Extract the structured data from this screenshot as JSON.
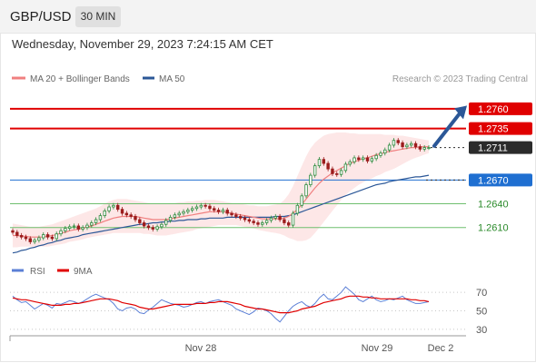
{
  "header": {
    "symbol": "GBP/USD",
    "timeframe": "30 MIN",
    "datetime": "Wednesday, November 29, 2023 7:24:15 AM CET"
  },
  "colors": {
    "ma20": "#f08080",
    "ma50": "#2b5797",
    "resistance": "#e00000",
    "pivot": "#1f6fd1",
    "support": "#2a8a2a",
    "last": "#2b2b2b",
    "candle_up": "#2e8b3e",
    "candle_down": "#9b1c1c",
    "band_fill": "#fde4e4",
    "rsi": "#5b7fd6",
    "rsi_ma": "#e00000"
  },
  "chart_data": [
    {
      "type": "candlestick",
      "legend": [
        {
          "name": "MA 20 + Bollinger Bands",
          "color": "#f08080"
        },
        {
          "name": "MA 50",
          "color": "#2b5797"
        }
      ],
      "credit": "Research © 2023 Trading Central",
      "x_tick_labels": [
        "Nov 28",
        "Nov 29",
        "Dec 2"
      ],
      "ylim": [
        1.2565,
        1.2785
      ],
      "levels": [
        {
          "label": "1.2760",
          "value": 1.276,
          "kind": "resistance"
        },
        {
          "label": "1.2735",
          "value": 1.2735,
          "kind": "resistance"
        },
        {
          "label": "1.2711",
          "value": 1.2711,
          "kind": "last"
        },
        {
          "label": "1.2670",
          "value": 1.267,
          "kind": "pivot"
        },
        {
          "label": "1.2640",
          "value": 1.264,
          "kind": "support"
        },
        {
          "label": "1.2610",
          "value": 1.261,
          "kind": "support"
        }
      ],
      "close": [
        1.2604,
        1.26,
        1.2598,
        1.2596,
        1.2592,
        1.2594,
        1.2597,
        1.2601,
        1.2598,
        1.2596,
        1.2602,
        1.2606,
        1.2609,
        1.2611,
        1.2612,
        1.2608,
        1.261,
        1.2613,
        1.2616,
        1.262,
        1.2625,
        1.2631,
        1.2636,
        1.2638,
        1.2633,
        1.2628,
        1.2626,
        1.2624,
        1.262,
        1.2616,
        1.2612,
        1.261,
        1.2608,
        1.2611,
        1.2614,
        1.2619,
        1.2623,
        1.2626,
        1.2628,
        1.263,
        1.2632,
        1.2634,
        1.2636,
        1.2638,
        1.2637,
        1.2634,
        1.2632,
        1.263,
        1.2632,
        1.2628,
        1.2626,
        1.2624,
        1.2622,
        1.262,
        1.2618,
        1.2616,
        1.2614,
        1.2616,
        1.2619,
        1.2622,
        1.2624,
        1.262,
        1.2616,
        1.2613,
        1.2628,
        1.2638,
        1.265,
        1.2664,
        1.2676,
        1.2688,
        1.2696,
        1.2691,
        1.2684,
        1.2678,
        1.2677,
        1.2682,
        1.269,
        1.2693,
        1.2698,
        1.2696,
        1.2698,
        1.2694,
        1.2697,
        1.2701,
        1.2704,
        1.2708,
        1.2714,
        1.272,
        1.2717,
        1.2712,
        1.2714,
        1.2716,
        1.2712,
        1.2709,
        1.2711,
        1.2711
      ],
      "ma20": [
        1.26,
        1.26,
        1.2599,
        1.2599,
        1.2598,
        1.2598,
        1.2598,
        1.2598,
        1.2599,
        1.26,
        1.2601,
        1.2603,
        1.2604,
        1.2606,
        1.2607,
        1.2608,
        1.2609,
        1.2611,
        1.2612,
        1.2614,
        1.2616,
        1.2618,
        1.262,
        1.2622,
        1.2623,
        1.2624,
        1.2624,
        1.2624,
        1.2624,
        1.2623,
        1.2622,
        1.2621,
        1.262,
        1.262,
        1.262,
        1.262,
        1.2621,
        1.2622,
        1.2623,
        1.2624,
        1.2625,
        1.2626,
        1.2627,
        1.2628,
        1.2629,
        1.263,
        1.263,
        1.263,
        1.263,
        1.2629,
        1.2628,
        1.2627,
        1.2626,
        1.2625,
        1.2624,
        1.2623,
        1.2622,
        1.2621,
        1.2621,
        1.2621,
        1.2621,
        1.2621,
        1.2622,
        1.2624,
        1.2628,
        1.2633,
        1.2639,
        1.2646,
        1.2653,
        1.266,
        1.2666,
        1.2671,
        1.2675,
        1.2679,
        1.2682,
        1.2685,
        1.2688,
        1.2691,
        1.2693,
        1.2695,
        1.2697,
        1.2698,
        1.27,
        1.2702,
        1.2703,
        1.2705,
        1.2706,
        1.2707,
        1.2708,
        1.2709,
        1.271,
        1.2711,
        1.2711,
        1.2712,
        1.2712,
        1.2712
      ],
      "ma50": [
        1.2578,
        1.2579,
        1.2581,
        1.2582,
        1.2584,
        1.2585,
        1.2587,
        1.2588,
        1.259,
        1.2591,
        1.2593,
        1.2594,
        1.2596,
        1.2597,
        1.2598,
        1.2599,
        1.2601,
        1.2602,
        1.2603,
        1.2604,
        1.2605,
        1.2606,
        1.2607,
        1.2608,
        1.2609,
        1.261,
        1.2611,
        1.2612,
        1.2613,
        1.2614,
        1.2614,
        1.2615,
        1.2616,
        1.2616,
        1.2617,
        1.2617,
        1.2618,
        1.2618,
        1.2619,
        1.2619,
        1.262,
        1.262,
        1.262,
        1.2621,
        1.2621,
        1.2622,
        1.2622,
        1.2622,
        1.2622,
        1.2623,
        1.2623,
        1.2623,
        1.2623,
        1.2623,
        1.2623,
        1.2623,
        1.2623,
        1.2623,
        1.2623,
        1.2623,
        1.2624,
        1.2624,
        1.2624,
        1.2625,
        1.2626,
        1.2628,
        1.263,
        1.2632,
        1.2634,
        1.2636,
        1.2638,
        1.264,
        1.2642,
        1.2644,
        1.2646,
        1.2648,
        1.265,
        1.2652,
        1.2654,
        1.2656,
        1.2658,
        1.266,
        1.2662,
        1.2664,
        1.2665,
        1.2666,
        1.2668,
        1.2669,
        1.267,
        1.2671,
        1.2672,
        1.2673,
        1.2674,
        1.2674,
        1.2675,
        1.2676
      ],
      "bb_upper": [
        1.2615,
        1.2614,
        1.2613,
        1.2612,
        1.2611,
        1.2611,
        1.2611,
        1.2612,
        1.2613,
        1.2614,
        1.2616,
        1.2618,
        1.262,
        1.2622,
        1.2624,
        1.2626,
        1.2628,
        1.263,
        1.2632,
        1.2634,
        1.2637,
        1.264,
        1.2643,
        1.2645,
        1.2646,
        1.2646,
        1.2646,
        1.2645,
        1.2644,
        1.2643,
        1.2642,
        1.2641,
        1.264,
        1.264,
        1.264,
        1.264,
        1.2641,
        1.2641,
        1.2642,
        1.2642,
        1.2643,
        1.2643,
        1.2644,
        1.2644,
        1.2645,
        1.2645,
        1.2645,
        1.2644,
        1.2643,
        1.2642,
        1.2641,
        1.264,
        1.264,
        1.2639,
        1.2638,
        1.2638,
        1.2637,
        1.2637,
        1.2637,
        1.2638,
        1.2639,
        1.264,
        1.2645,
        1.2652,
        1.2662,
        1.2675,
        1.2688,
        1.27,
        1.271,
        1.2717,
        1.2722,
        1.2726,
        1.2728,
        1.2729,
        1.273,
        1.273,
        1.273,
        1.2729,
        1.2729,
        1.2728,
        1.2728,
        1.2728,
        1.2728,
        1.2728,
        1.2728,
        1.2727,
        1.2727,
        1.2727,
        1.2726,
        1.2726,
        1.2725,
        1.2724,
        1.2723,
        1.2722,
        1.2721,
        1.272
      ],
      "bb_lower": [
        1.2585,
        1.2585,
        1.2586,
        1.2586,
        1.2586,
        1.2586,
        1.2586,
        1.2586,
        1.2586,
        1.2587,
        1.2588,
        1.2589,
        1.259,
        1.2592,
        1.2593,
        1.2594,
        1.2595,
        1.2597,
        1.2598,
        1.2599,
        1.26,
        1.2601,
        1.2602,
        1.2603,
        1.2603,
        1.2603,
        1.2603,
        1.2603,
        1.2603,
        1.2603,
        1.2602,
        1.2602,
        1.2601,
        1.26,
        1.26,
        1.26,
        1.2601,
        1.2602,
        1.2603,
        1.2604,
        1.2605,
        1.2606,
        1.2608,
        1.2609,
        1.261,
        1.2611,
        1.2612,
        1.2613,
        1.2613,
        1.2613,
        1.2613,
        1.2613,
        1.2612,
        1.2611,
        1.261,
        1.2609,
        1.2607,
        1.2606,
        1.2605,
        1.2604,
        1.2603,
        1.2602,
        1.26,
        1.2597,
        1.2595,
        1.2593,
        1.2593,
        1.2594,
        1.2597,
        1.2603,
        1.261,
        1.2617,
        1.2624,
        1.2631,
        1.2638,
        1.2645,
        1.2651,
        1.2656,
        1.266,
        1.2664,
        1.2667,
        1.267,
        1.2672,
        1.2675,
        1.2677,
        1.268,
        1.2682,
        1.2684,
        1.2687,
        1.269,
        1.2693,
        1.2696,
        1.2698,
        1.27,
        1.2702,
        1.2704
      ]
    },
    {
      "type": "line",
      "legend": [
        {
          "name": "RSI",
          "color": "#5b7fd6"
        },
        {
          "name": "9MA",
          "color": "#e00000"
        }
      ],
      "ylim": [
        25,
        80
      ],
      "y_ticks": [
        "70",
        "50",
        "30"
      ],
      "x_tick_labels": [
        "Nov 28",
        "Nov 29",
        "Dec 2"
      ],
      "rsi": [
        66,
        62,
        59,
        60,
        56,
        52,
        55,
        58,
        56,
        53,
        58,
        57,
        59,
        61,
        60,
        58,
        60,
        63,
        66,
        68,
        66,
        64,
        62,
        58,
        52,
        50,
        53,
        54,
        52,
        48,
        47,
        51,
        54,
        58,
        62,
        60,
        58,
        57,
        56,
        54,
        55,
        57,
        59,
        60,
        58,
        60,
        61,
        62,
        60,
        58,
        56,
        52,
        50,
        48,
        46,
        49,
        53,
        52,
        50,
        47,
        42,
        38,
        44,
        50,
        55,
        58,
        60,
        56,
        54,
        58,
        64,
        68,
        63,
        62,
        66,
        70,
        76,
        72,
        68,
        62,
        60,
        63,
        66,
        62,
        60,
        61,
        63,
        62,
        64,
        66,
        62,
        60,
        58,
        58,
        59,
        60
      ],
      "ma9": [
        64,
        63,
        62,
        62,
        61,
        60,
        59,
        58,
        57,
        56,
        56,
        56,
        57,
        57,
        58,
        58,
        59,
        60,
        61,
        62,
        63,
        63,
        63,
        62,
        61,
        59,
        58,
        57,
        56,
        54,
        53,
        52,
        52,
        53,
        54,
        55,
        56,
        57,
        57,
        57,
        57,
        57,
        58,
        58,
        58,
        59,
        59,
        60,
        60,
        60,
        59,
        58,
        57,
        55,
        54,
        53,
        52,
        52,
        51,
        50,
        49,
        48,
        48,
        48,
        49,
        50,
        52,
        53,
        54,
        55,
        57,
        59,
        60,
        61,
        62,
        63,
        65,
        66,
        66,
        66,
        65,
        65,
        64,
        64,
        63,
        63,
        63,
        63,
        63,
        63,
        63,
        62,
        62,
        61,
        61,
        60
      ]
    }
  ]
}
